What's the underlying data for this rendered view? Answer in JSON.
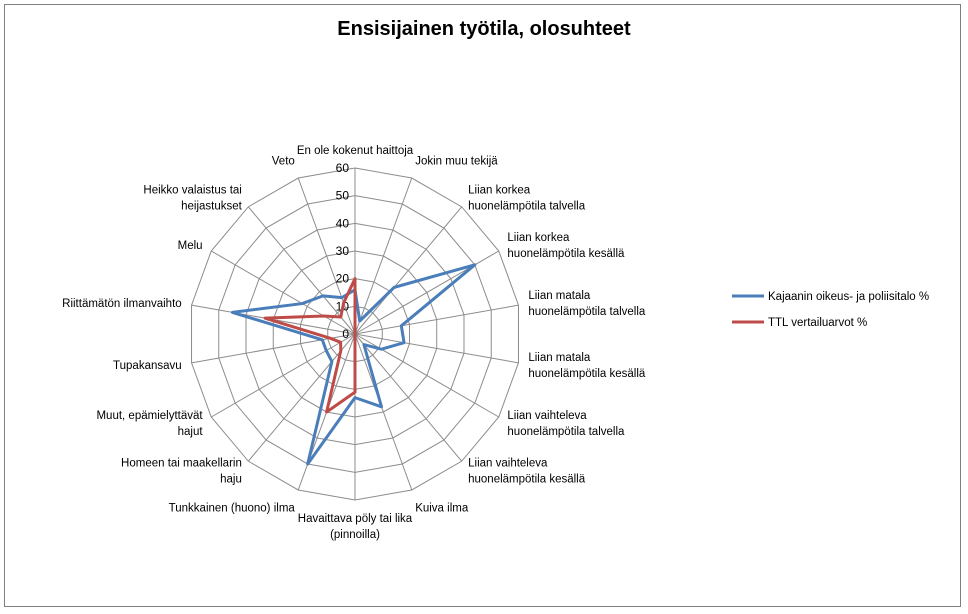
{
  "chart_data": {
    "type": "radar",
    "title": "Ensisijainen työtila, olosuhteet",
    "categories": [
      "En ole kokenut haittoja",
      "Jokin muu tekijä",
      "Liian korkea huonelämpötila talvella",
      "Liian korkea huonelämpötila kesällä",
      "Liian matala huonelämpötila talvella",
      "Liian matala huonelämpötila kesällä",
      "Liian vaihteleva huonelämpötila talvella",
      "Liian vaihteleva huonelämpötila kesällä",
      "Kuiva ilma",
      "Havaittava pöly tai lika (pinnoilla)",
      "Tunkkainen (huono) ilma",
      "Homeen tai maakellarin haju",
      "Muut, epämielyttävät hajut",
      "Tupakansavu",
      "Riittämätön ilmanvaihto",
      "Melu",
      "Heikko valaistus tai heijastukset",
      "Veto"
    ],
    "category_lines": [
      [
        "En ole kokenut haittoja"
      ],
      [
        "Jokin muu tekijä"
      ],
      [
        "Liian korkea",
        "huonelämpötila talvella"
      ],
      [
        "Liian korkea",
        "huonelämpötila kesällä"
      ],
      [
        "Liian matala",
        "huonelämpötila talvella"
      ],
      [
        "Liian matala",
        "huonelämpötila kesällä"
      ],
      [
        "Liian vaihteleva",
        "huonelämpötila talvella"
      ],
      [
        "Liian vaihteleva",
        "huonelämpötila kesällä"
      ],
      [
        "Kuiva ilma"
      ],
      [
        "Havaittava pöly tai lika",
        "(pinnoilla)"
      ],
      [
        "Tunkkainen (huono) ilma"
      ],
      [
        "Homeen tai maakellarin",
        "haju"
      ],
      [
        "Muut, epämielyttävät",
        "hajut"
      ],
      [
        "Tupakansavu"
      ],
      [
        "Riittämätön ilmanvaihto"
      ],
      [
        "Melu"
      ],
      [
        "Heikko valaistus tai",
        "heijastukset"
      ],
      [
        "Veto"
      ]
    ],
    "series": [
      {
        "name": "Kajaanin oikeus- ja poliisitalo %",
        "color": "#4a7ebb",
        "values": [
          16,
          5,
          22,
          50,
          17,
          18,
          11,
          5,
          28,
          23,
          50,
          13,
          12,
          12,
          45,
          22,
          18,
          14
        ]
      },
      {
        "name": "TTL vertailuarvot %",
        "color": "#be4b48",
        "values": [
          20,
          0,
          0,
          0,
          0,
          0,
          0,
          0,
          0,
          21,
          30,
          8,
          6,
          9,
          33,
          13,
          8,
          12
        ]
      }
    ],
    "ylim": [
      0,
      60
    ],
    "ticks": [
      "0",
      "10",
      "20",
      "30",
      "40",
      "50",
      "60"
    ],
    "grid": true,
    "legend_position": "right"
  }
}
